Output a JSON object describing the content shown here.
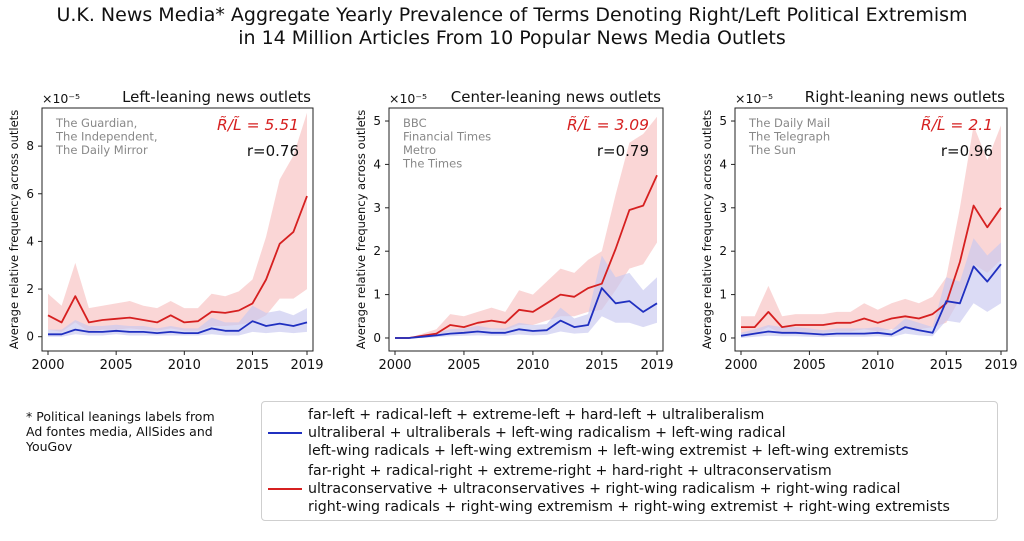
{
  "figure": {
    "title_line1": "U.K. News Media* Aggregate Yearly Prevalence of Terms Denoting Right/Left Political Extremism",
    "title_line2": "in 14 Million Articles From 10 Popular News Media Outlets",
    "footnote_lines": [
      "* Political leanings labels from",
      "Ad fontes media, AllSides and",
      "YouGov"
    ],
    "legend": [
      {
        "color": "#2030c0",
        "lines": [
          "far-left + radical-left + extreme-left + hard-left + ultraliberalism",
          "ultraliberal + ultraliberals + left-wing radicalism + left-wing radical",
          "left-wing radicals + left-wing extremism + left-wing extremist + left-wing extremists"
        ]
      },
      {
        "color": "#d62020",
        "lines": [
          "far-right + radical-right + extreme-right + hard-right + ultraconservatism",
          "ultraconservative + ultraconservatives + right-wing radicalism + right-wing radical",
          "right-wing radicals + right-wing extremism + right-wing extremist + right-wing extremists"
        ]
      }
    ]
  },
  "colors": {
    "left_series": "#2030c0",
    "right_series": "#d62020",
    "right_band": "#f8c8c8",
    "left_band": "#c8c8f0",
    "annotation_red": "#d62020",
    "outlet_text": "#888888"
  },
  "chart_data": [
    {
      "type": "line",
      "title": "Left-leaning news outlets",
      "ylabel": "Average relative frequency across outlets",
      "y_multiplier": "×10⁻⁵",
      "outlets": [
        "The Guardian,",
        "The Independent,",
        "The Daily Mirror"
      ],
      "ratio_label": "R̃/L̃ = 5.51",
      "r_label": "r=0.76",
      "xlim": [
        2000,
        2019
      ],
      "ylim": [
        -0.6,
        9.6
      ],
      "x_ticks": [
        2000,
        2005,
        2010,
        2015,
        2019
      ],
      "y_ticks": [
        0,
        2,
        4,
        6,
        8
      ],
      "x": [
        2000,
        2001,
        2002,
        2003,
        2004,
        2005,
        2006,
        2007,
        2008,
        2009,
        2010,
        2011,
        2012,
        2013,
        2014,
        2015,
        2016,
        2017,
        2018,
        2019
      ],
      "series": [
        {
          "values": [
            0.9,
            0.6,
            1.7,
            0.6,
            0.7,
            0.75,
            0.8,
            0.7,
            0.6,
            0.9,
            0.6,
            0.65,
            1.05,
            1.0,
            1.1,
            1.4,
            2.4,
            3.9,
            4.4,
            5.9
          ],
          "lower": [
            0.3,
            0.2,
            0.6,
            0.2,
            0.3,
            0.3,
            0.35,
            0.3,
            0.25,
            0.35,
            0.25,
            0.25,
            0.45,
            0.45,
            0.5,
            0.6,
            0.9,
            1.6,
            1.6,
            2.0
          ],
          "upper": [
            1.8,
            1.3,
            3.1,
            1.2,
            1.3,
            1.4,
            1.5,
            1.3,
            1.2,
            1.5,
            1.2,
            1.2,
            1.8,
            1.7,
            1.9,
            2.4,
            4.2,
            6.6,
            7.6,
            9.4
          ]
        },
        {
          "values": [
            0.1,
            0.1,
            0.3,
            0.2,
            0.2,
            0.25,
            0.2,
            0.2,
            0.15,
            0.2,
            0.15,
            0.15,
            0.35,
            0.25,
            0.25,
            0.65,
            0.45,
            0.55,
            0.45,
            0.6
          ],
          "lower": [
            0.0,
            0.0,
            0.1,
            0.05,
            0.05,
            0.1,
            0.05,
            0.05,
            0.05,
            0.05,
            0.05,
            0.05,
            0.1,
            0.05,
            0.05,
            0.2,
            0.15,
            0.2,
            0.15,
            0.2
          ],
          "upper": [
            0.3,
            0.3,
            0.7,
            0.45,
            0.45,
            0.5,
            0.45,
            0.45,
            0.35,
            0.45,
            0.35,
            0.35,
            0.8,
            0.6,
            0.6,
            1.3,
            1.0,
            1.1,
            0.9,
            1.2
          ]
        }
      ]
    },
    {
      "type": "line",
      "title": "Center-leaning news outlets",
      "ylabel": "Average relative frequency across outlets",
      "y_multiplier": "×10⁻⁵",
      "outlets": [
        "BBC",
        "Financial Times",
        "Metro",
        "The Times"
      ],
      "ratio_label": "R̃/L̃ = 3.09",
      "r_label": "r=0.79",
      "xlim": [
        2000,
        2019
      ],
      "ylim": [
        -0.3,
        5.3
      ],
      "x_ticks": [
        2000,
        2005,
        2010,
        2015,
        2019
      ],
      "y_ticks": [
        0,
        1,
        2,
        3,
        4,
        5
      ],
      "x": [
        2000,
        2001,
        2002,
        2003,
        2004,
        2005,
        2006,
        2007,
        2008,
        2009,
        2010,
        2011,
        2012,
        2013,
        2014,
        2015,
        2016,
        2017,
        2018,
        2019
      ],
      "series": [
        {
          "values": [
            0.0,
            0.0,
            0.05,
            0.1,
            0.3,
            0.25,
            0.35,
            0.4,
            0.35,
            0.65,
            0.6,
            0.8,
            1.0,
            0.95,
            1.15,
            1.25,
            2.05,
            2.95,
            3.05,
            3.75
          ],
          "lower": [
            0.0,
            0.0,
            0.02,
            0.05,
            0.15,
            0.12,
            0.18,
            0.2,
            0.18,
            0.3,
            0.3,
            0.4,
            0.5,
            0.5,
            0.6,
            0.65,
            1.1,
            1.6,
            1.7,
            2.2
          ],
          "upper": [
            0.0,
            0.0,
            0.1,
            0.2,
            0.55,
            0.5,
            0.6,
            0.7,
            0.6,
            1.1,
            1.0,
            1.3,
            1.6,
            1.5,
            1.8,
            2.0,
            3.3,
            4.5,
            4.7,
            5.1
          ]
        },
        {
          "values": [
            0.0,
            0.0,
            0.03,
            0.06,
            0.1,
            0.12,
            0.15,
            0.12,
            0.12,
            0.2,
            0.16,
            0.18,
            0.4,
            0.25,
            0.3,
            1.15,
            0.8,
            0.85,
            0.6,
            0.8
          ],
          "lower": [
            0.0,
            0.0,
            0.0,
            0.02,
            0.04,
            0.05,
            0.06,
            0.05,
            0.05,
            0.08,
            0.06,
            0.07,
            0.15,
            0.1,
            0.12,
            0.5,
            0.35,
            0.35,
            0.25,
            0.35
          ],
          "upper": [
            0.0,
            0.0,
            0.07,
            0.12,
            0.2,
            0.22,
            0.28,
            0.22,
            0.22,
            0.35,
            0.3,
            0.32,
            0.7,
            0.45,
            0.55,
            1.9,
            1.4,
            1.5,
            1.1,
            1.4
          ]
        }
      ]
    },
    {
      "type": "line",
      "title": "Right-leaning news outlets",
      "ylabel": "Average relative frequency across outlets",
      "y_multiplier": "×10⁻⁵",
      "outlets": [
        "The Daily Mail",
        "The Telegraph",
        "The Sun"
      ],
      "ratio_label": "R̃/L̃ = 2.1",
      "r_label": "r=0.96",
      "xlim": [
        2000,
        2019
      ],
      "ylim": [
        -0.3,
        5.3
      ],
      "x_ticks": [
        2000,
        2005,
        2010,
        2015,
        2019
      ],
      "y_ticks": [
        0,
        1,
        2,
        3,
        4,
        5
      ],
      "x": [
        2000,
        2001,
        2002,
        2003,
        2004,
        2005,
        2006,
        2007,
        2008,
        2009,
        2010,
        2011,
        2012,
        2013,
        2014,
        2015,
        2016,
        2017,
        2018,
        2019
      ],
      "series": [
        {
          "values": [
            0.25,
            0.25,
            0.6,
            0.25,
            0.3,
            0.3,
            0.3,
            0.35,
            0.35,
            0.45,
            0.35,
            0.45,
            0.5,
            0.45,
            0.55,
            0.8,
            1.75,
            3.05,
            2.55,
            3.0
          ],
          "lower": [
            0.1,
            0.1,
            0.25,
            0.1,
            0.12,
            0.12,
            0.12,
            0.15,
            0.15,
            0.2,
            0.15,
            0.2,
            0.22,
            0.2,
            0.25,
            0.35,
            0.9,
            1.7,
            1.5,
            1.8
          ],
          "upper": [
            0.5,
            0.5,
            1.2,
            0.5,
            0.55,
            0.55,
            0.55,
            0.6,
            0.6,
            0.8,
            0.65,
            0.8,
            0.9,
            0.8,
            0.95,
            1.4,
            3.0,
            4.9,
            4.1,
            4.9
          ]
        },
        {
          "values": [
            0.05,
            0.1,
            0.15,
            0.12,
            0.12,
            0.1,
            0.08,
            0.1,
            0.1,
            0.1,
            0.12,
            0.08,
            0.25,
            0.18,
            0.12,
            0.85,
            0.8,
            1.65,
            1.3,
            1.7
          ],
          "lower": [
            0.0,
            0.03,
            0.05,
            0.04,
            0.04,
            0.03,
            0.02,
            0.03,
            0.03,
            0.03,
            0.04,
            0.02,
            0.1,
            0.06,
            0.04,
            0.4,
            0.35,
            0.8,
            0.6,
            0.8
          ],
          "upper": [
            0.12,
            0.2,
            0.3,
            0.25,
            0.25,
            0.22,
            0.18,
            0.22,
            0.22,
            0.22,
            0.25,
            0.18,
            0.45,
            0.35,
            0.25,
            1.4,
            1.3,
            2.3,
            1.9,
            2.2
          ]
        }
      ]
    }
  ]
}
